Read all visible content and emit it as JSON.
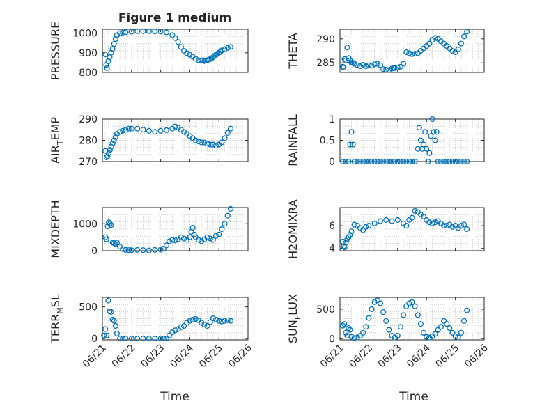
{
  "figure": {
    "title": "Figure 1 medium",
    "xlabel": "Time"
  },
  "chart_data": [
    {
      "type": "scatter",
      "ylabel": "PRESSURE",
      "ylim": [
        800,
        1020
      ],
      "yticks": [
        800,
        900,
        1000
      ],
      "xticks": [
        "06/21",
        "06/22",
        "06/23",
        "06/24",
        "06/25",
        "06/26"
      ],
      "show_xticklabels": false,
      "grid": true,
      "x": [
        0.1,
        0.13,
        0.16,
        0.2,
        0.25,
        0.3,
        0.35,
        0.4,
        0.45,
        0.5,
        0.6,
        0.7,
        0.8,
        1.0,
        1.2,
        1.4,
        1.6,
        1.8,
        2.0,
        2.2,
        2.4,
        2.5,
        2.6,
        2.7,
        2.8,
        2.9,
        3.0,
        3.1,
        3.2,
        3.3,
        3.4,
        3.45,
        3.5,
        3.55,
        3.6,
        3.65,
        3.7,
        3.75,
        3.8,
        3.85,
        3.9,
        3.95,
        4.0,
        4.05,
        4.1,
        4.2,
        4.3,
        4.4
      ],
      "y": [
        892,
        838,
        822,
        856,
        878,
        900,
        920,
        945,
        970,
        990,
        1000,
        1003,
        1005,
        1008,
        1010,
        1010,
        1010,
        1009,
        1008,
        1004,
        990,
        975,
        955,
        930,
        910,
        898,
        890,
        880,
        870,
        862,
        860,
        862,
        858,
        860,
        862,
        865,
        868,
        872,
        878,
        885,
        890,
        895,
        900,
        905,
        912,
        918,
        925,
        930
      ]
    },
    {
      "type": "scatter",
      "ylabel": "THETA",
      "ylim": [
        283,
        292
      ],
      "yticks": [
        285,
        290
      ],
      "xticks": [
        "06/21",
        "06/22",
        "06/23",
        "06/24",
        "06/25",
        "06/26"
      ],
      "show_xticklabels": false,
      "grid": true,
      "x": [
        0.1,
        0.13,
        0.16,
        0.2,
        0.25,
        0.3,
        0.35,
        0.4,
        0.45,
        0.5,
        0.6,
        0.7,
        0.8,
        0.9,
        1.0,
        1.1,
        1.2,
        1.3,
        1.4,
        1.5,
        1.6,
        1.7,
        1.8,
        1.85,
        1.9,
        2.0,
        2.1,
        2.2,
        2.3,
        2.4,
        2.5,
        2.6,
        2.7,
        2.8,
        2.9,
        3.0,
        3.1,
        3.2,
        3.3,
        3.4,
        3.5,
        3.6,
        3.7,
        3.8,
        3.9,
        4.0,
        4.1,
        4.2,
        4.3,
        4.4
      ],
      "y": [
        284.2,
        284.0,
        285.8,
        285.5,
        288.2,
        286.0,
        285.5,
        285.0,
        285.0,
        284.8,
        284.5,
        284.3,
        284.6,
        284.3,
        284.5,
        284.4,
        284.7,
        284.8,
        284.5,
        283.7,
        283.6,
        283.5,
        283.8,
        284.0,
        283.9,
        284.0,
        284.2,
        284.8,
        287.2,
        287.0,
        286.8,
        286.9,
        287.0,
        287.5,
        288.0,
        288.5,
        289.0,
        289.8,
        290.2,
        290.0,
        289.5,
        289.0,
        288.5,
        288.0,
        287.5,
        287.2,
        287.8,
        289.0,
        290.5,
        291.5
      ]
    },
    {
      "type": "scatter",
      "ylabel": "AIR_TEMP",
      "ylim": [
        270,
        290
      ],
      "yticks": [
        270,
        280,
        290
      ],
      "xticks": [
        "06/21",
        "06/22",
        "06/23",
        "06/24",
        "06/25",
        "06/26"
      ],
      "show_xticklabels": false,
      "grid": true,
      "x": [
        0.1,
        0.14,
        0.18,
        0.22,
        0.26,
        0.3,
        0.35,
        0.4,
        0.45,
        0.5,
        0.6,
        0.7,
        0.8,
        0.9,
        1.0,
        1.2,
        1.4,
        1.6,
        1.8,
        2.0,
        2.2,
        2.4,
        2.5,
        2.6,
        2.7,
        2.8,
        2.9,
        3.0,
        3.1,
        3.2,
        3.3,
        3.4,
        3.5,
        3.6,
        3.7,
        3.8,
        3.9,
        4.0,
        4.1,
        4.2,
        4.3,
        4.4
      ],
      "y": [
        275.0,
        272.0,
        272.5,
        274.0,
        275.5,
        277.0,
        278.5,
        280.0,
        281.5,
        283.0,
        284.0,
        284.5,
        285.0,
        285.5,
        285.5,
        285.5,
        285.0,
        284.5,
        284.0,
        284.5,
        284.8,
        285.5,
        286.5,
        286.0,
        285.0,
        284.0,
        283.0,
        282.0,
        281.0,
        280.0,
        279.5,
        279.0,
        279.0,
        278.5,
        278.0,
        278.0,
        277.5,
        278.0,
        279.0,
        281.0,
        283.5,
        285.5
      ]
    },
    {
      "type": "scatter",
      "ylabel": "RAINFALL",
      "ylim": [
        0,
        1
      ],
      "yticks": [
        0,
        0.5,
        1
      ],
      "xticks": [
        "06/21",
        "06/22",
        "06/23",
        "06/24",
        "06/25",
        "06/26"
      ],
      "show_xticklabels": false,
      "grid": true,
      "x": [
        0.1,
        0.2,
        0.3,
        0.35,
        0.4,
        0.45,
        0.5,
        0.6,
        0.7,
        0.8,
        0.9,
        1.0,
        1.1,
        1.2,
        1.3,
        1.4,
        1.5,
        1.6,
        1.7,
        1.8,
        1.9,
        2.0,
        2.1,
        2.2,
        2.3,
        2.4,
        2.5,
        2.6,
        2.7,
        2.75,
        2.8,
        2.85,
        2.9,
        2.95,
        3.0,
        3.05,
        3.1,
        3.15,
        3.2,
        3.25,
        3.3,
        3.35,
        3.4,
        3.5,
        3.6,
        3.7,
        3.8,
        3.9,
        4.0,
        4.1,
        4.2,
        4.3,
        4.4
      ],
      "y": [
        0,
        0,
        0,
        0.4,
        0.7,
        0.4,
        0,
        0,
        0,
        0,
        0,
        0,
        0,
        0,
        0,
        0,
        0,
        0,
        0,
        0,
        0,
        0,
        0,
        0,
        0,
        0,
        0,
        0,
        0.3,
        0.8,
        0.5,
        0.3,
        0.4,
        0.7,
        0.3,
        0,
        0.2,
        0.6,
        1.0,
        0.7,
        0.5,
        0.7,
        0,
        0,
        0,
        0,
        0,
        0,
        0,
        0,
        0,
        0,
        0
      ]
    },
    {
      "type": "scatter",
      "ylabel": "MIXDEPTH",
      "ylim": [
        0,
        1600
      ],
      "yticks": [
        0,
        1000
      ],
      "xticks": [
        "06/21",
        "06/22",
        "06/23",
        "06/24",
        "06/25",
        "06/26"
      ],
      "show_xticklabels": false,
      "grid": true,
      "x": [
        0.1,
        0.14,
        0.18,
        0.22,
        0.26,
        0.3,
        0.35,
        0.4,
        0.45,
        0.5,
        0.6,
        0.7,
        0.8,
        0.9,
        1.0,
        1.2,
        1.4,
        1.6,
        1.8,
        2.0,
        2.1,
        2.2,
        2.3,
        2.4,
        2.5,
        2.6,
        2.7,
        2.8,
        2.9,
        3.0,
        3.05,
        3.1,
        3.15,
        3.2,
        3.3,
        3.4,
        3.5,
        3.6,
        3.7,
        3.8,
        3.9,
        4.0,
        4.1,
        4.2,
        4.3,
        4.4
      ],
      "y": [
        500,
        420,
        900,
        1050,
        1000,
        950,
        300,
        280,
        250,
        300,
        150,
        60,
        30,
        20,
        20,
        30,
        20,
        10,
        30,
        40,
        80,
        200,
        350,
        400,
        380,
        420,
        500,
        450,
        400,
        500,
        700,
        850,
        600,
        500,
        400,
        350,
        420,
        500,
        450,
        400,
        550,
        600,
        800,
        1000,
        1300,
        1550
      ]
    },
    {
      "type": "scatter",
      "ylabel": "H2OMIXRA",
      "ylim": [
        3.8,
        7.6
      ],
      "yticks": [
        4,
        6
      ],
      "xticks": [
        "06/21",
        "06/22",
        "06/23",
        "06/24",
        "06/25",
        "06/26"
      ],
      "show_xticklabels": false,
      "grid": true,
      "x": [
        0.1,
        0.13,
        0.16,
        0.2,
        0.25,
        0.3,
        0.35,
        0.4,
        0.5,
        0.6,
        0.7,
        0.8,
        0.9,
        1.0,
        1.2,
        1.4,
        1.6,
        1.8,
        2.0,
        2.2,
        2.3,
        2.4,
        2.5,
        2.6,
        2.7,
        2.8,
        2.9,
        3.0,
        3.1,
        3.2,
        3.3,
        3.4,
        3.5,
        3.6,
        3.7,
        3.8,
        3.9,
        4.0,
        4.1,
        4.2,
        4.3,
        4.4
      ],
      "y": [
        4.6,
        4.2,
        4.1,
        4.5,
        4.8,
        5.0,
        5.2,
        5.5,
        6.1,
        6.0,
        5.8,
        5.6,
        5.9,
        6.0,
        6.2,
        6.4,
        6.5,
        6.4,
        6.5,
        6.2,
        6.0,
        6.5,
        6.7,
        7.3,
        7.2,
        7.0,
        6.8,
        6.5,
        6.3,
        6.2,
        6.3,
        6.4,
        6.2,
        6.0,
        6.0,
        6.1,
        5.9,
        6.0,
        5.8,
        6.0,
        6.1,
        5.7
      ]
    },
    {
      "type": "scatter",
      "ylabel": "TERR_MSL",
      "ylim": [
        -20,
        650
      ],
      "yticks": [
        0,
        500
      ],
      "xticks": [
        "06/21",
        "06/22",
        "06/23",
        "06/24",
        "06/25",
        "06/26"
      ],
      "show_xticklabels": true,
      "grid": true,
      "x": [
        0.05,
        0.1,
        0.15,
        0.2,
        0.25,
        0.3,
        0.35,
        0.4,
        0.45,
        0.5,
        0.6,
        0.7,
        0.8,
        1.0,
        1.2,
        1.4,
        1.6,
        1.8,
        2.0,
        2.1,
        2.2,
        2.3,
        2.4,
        2.5,
        2.6,
        2.7,
        2.8,
        2.9,
        3.0,
        3.1,
        3.2,
        3.3,
        3.4,
        3.5,
        3.6,
        3.7,
        3.8,
        3.9,
        4.0,
        4.1,
        4.2,
        4.3,
        4.4
      ],
      "y": [
        50,
        150,
        50,
        600,
        430,
        420,
        300,
        280,
        200,
        80,
        0,
        0,
        0,
        0,
        0,
        0,
        0,
        0,
        0,
        0,
        0,
        50,
        100,
        130,
        150,
        180,
        200,
        250,
        280,
        300,
        310,
        290,
        250,
        220,
        200,
        260,
        320,
        300,
        280,
        270,
        280,
        290,
        280
      ]
    },
    {
      "type": "scatter",
      "ylabel": "SUN_FLUX",
      "ylim": [
        -20,
        700
      ],
      "yticks": [
        0,
        500
      ],
      "xticks": [
        "06/21",
        "06/22",
        "06/23",
        "06/24",
        "06/25",
        "06/26"
      ],
      "show_xticklabels": true,
      "grid": true,
      "x": [
        0.1,
        0.15,
        0.2,
        0.25,
        0.3,
        0.35,
        0.4,
        0.5,
        0.6,
        0.7,
        0.8,
        0.9,
        1.0,
        1.1,
        1.2,
        1.3,
        1.4,
        1.5,
        1.6,
        1.7,
        1.8,
        1.9,
        2.0,
        2.1,
        2.2,
        2.3,
        2.4,
        2.5,
        2.6,
        2.7,
        2.8,
        2.9,
        3.0,
        3.1,
        3.2,
        3.3,
        3.4,
        3.5,
        3.6,
        3.7,
        3.8,
        3.9,
        4.0,
        4.1,
        4.2,
        4.3,
        4.4
      ],
      "y": [
        220,
        250,
        100,
        50,
        180,
        150,
        30,
        10,
        20,
        50,
        100,
        200,
        350,
        500,
        620,
        650,
        600,
        450,
        300,
        150,
        50,
        20,
        50,
        200,
        400,
        550,
        600,
        620,
        550,
        400,
        250,
        100,
        30,
        20,
        40,
        80,
        150,
        200,
        300,
        250,
        180,
        100,
        40,
        20,
        100,
        300,
        480
      ]
    }
  ]
}
